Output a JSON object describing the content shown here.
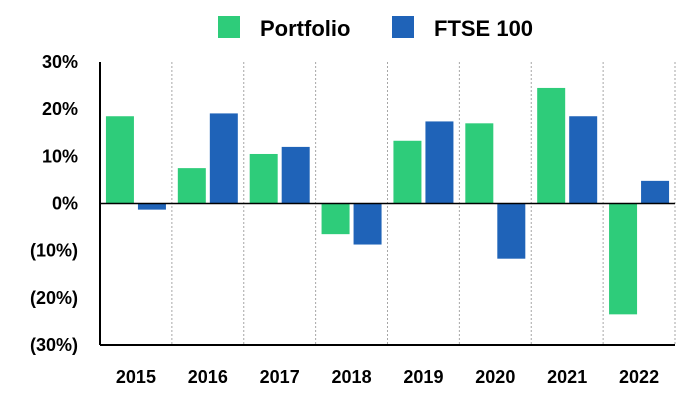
{
  "chart_data": {
    "type": "bar",
    "title": "",
    "xlabel": "",
    "ylabel": "",
    "categories": [
      "2015",
      "2016",
      "2017",
      "2018",
      "2019",
      "2020",
      "2021",
      "2022"
    ],
    "series": [
      {
        "name": "Portfolio",
        "color": "#2ecc7a",
        "values": [
          18.5,
          7.5,
          10.5,
          -6.5,
          13.3,
          17.0,
          24.5,
          -23.5
        ]
      },
      {
        "name": "FTSE 100",
        "color": "#1f63b8",
        "values": [
          -1.3,
          19.1,
          12.0,
          -8.7,
          17.4,
          -11.7,
          18.5,
          4.8
        ]
      }
    ],
    "ylim": [
      -30,
      30
    ],
    "yticks": [
      30,
      20,
      10,
      0,
      -10,
      -20,
      -30
    ],
    "ytick_labels": [
      "30%",
      "20%",
      "10%",
      "0%",
      "(10%)",
      "(20%)",
      "(30%)"
    ],
    "grid": {
      "vertical": true,
      "horizontal": false
    },
    "legend": "top-center"
  }
}
